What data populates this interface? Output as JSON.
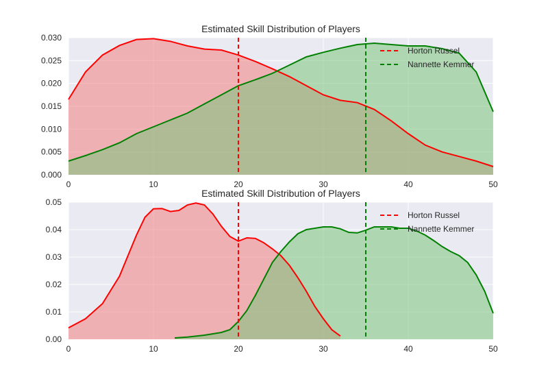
{
  "colors": {
    "background": "#eaeaf2",
    "grid": "#ffffff",
    "red": "#ff0000",
    "red_fill": "#f08080",
    "green": "#008000",
    "green_fill": "#7cc47c"
  },
  "chart_data": [
    {
      "type": "area",
      "title": "Estimated Skill Distribution of Players",
      "xlabel": "",
      "ylabel": "",
      "xlim": [
        0,
        50
      ],
      "ylim": [
        0,
        0.03
      ],
      "xticks": [
        "0",
        "10",
        "20",
        "30",
        "40",
        "50"
      ],
      "yticks": [
        "0.000",
        "0.005",
        "0.010",
        "0.015",
        "0.020",
        "0.025",
        "0.030"
      ],
      "grid": true,
      "legend": "top-right",
      "series": [
        {
          "name": "Horton Russel",
          "color": "red",
          "mean": 20,
          "points": [
            [
              0,
              0.0165
            ],
            [
              2,
              0.0225
            ],
            [
              4,
              0.0262
            ],
            [
              6,
              0.0283
            ],
            [
              8,
              0.0296
            ],
            [
              10,
              0.0298
            ],
            [
              12,
              0.0292
            ],
            [
              14,
              0.0282
            ],
            [
              16,
              0.0275
            ],
            [
              18,
              0.0273
            ],
            [
              20,
              0.0262
            ],
            [
              22,
              0.0248
            ],
            [
              24,
              0.0232
            ],
            [
              26,
              0.0215
            ],
            [
              28,
              0.0195
            ],
            [
              30,
              0.0175
            ],
            [
              32,
              0.0163
            ],
            [
              34,
              0.0158
            ],
            [
              36,
              0.0143
            ],
            [
              38,
              0.0118
            ],
            [
              40,
              0.009
            ],
            [
              42,
              0.0065
            ],
            [
              44,
              0.005
            ],
            [
              46,
              0.004
            ],
            [
              48,
              0.003
            ],
            [
              50,
              0.0018
            ]
          ]
        },
        {
          "name": "Nannette Kemmer",
          "color": "green",
          "mean": 35,
          "points": [
            [
              0,
              0.003
            ],
            [
              2,
              0.0042
            ],
            [
              4,
              0.0055
            ],
            [
              6,
              0.007
            ],
            [
              8,
              0.009
            ],
            [
              10,
              0.0105
            ],
            [
              12,
              0.012
            ],
            [
              14,
              0.0135
            ],
            [
              16,
              0.0155
            ],
            [
              18,
              0.0175
            ],
            [
              20,
              0.0195
            ],
            [
              22,
              0.0208
            ],
            [
              24,
              0.0222
            ],
            [
              26,
              0.024
            ],
            [
              28,
              0.0258
            ],
            [
              30,
              0.0268
            ],
            [
              32,
              0.0277
            ],
            [
              34,
              0.0285
            ],
            [
              36,
              0.0288
            ],
            [
              38,
              0.0285
            ],
            [
              40,
              0.0282
            ],
            [
              42,
              0.0282
            ],
            [
              44,
              0.0276
            ],
            [
              46,
              0.0266
            ],
            [
              48,
              0.0225
            ],
            [
              50,
              0.0138
            ]
          ]
        }
      ]
    },
    {
      "type": "area",
      "title": "Estimated Skill Distribution of Players",
      "xlabel": "",
      "ylabel": "",
      "xlim": [
        0,
        50
      ],
      "ylim": [
        0,
        0.05
      ],
      "xticks": [
        "0",
        "10",
        "20",
        "30",
        "40",
        "50"
      ],
      "yticks": [
        "0.00",
        "0.01",
        "0.02",
        "0.03",
        "0.04",
        "0.05"
      ],
      "grid": true,
      "legend": "top-right",
      "series": [
        {
          "name": "Horton Russel",
          "color": "red",
          "mean": 20,
          "points": [
            [
              0,
              0.0042
            ],
            [
              2,
              0.0075
            ],
            [
              4,
              0.013
            ],
            [
              6,
              0.023
            ],
            [
              8,
              0.038
            ],
            [
              9,
              0.0445
            ],
            [
              10,
              0.0476
            ],
            [
              11,
              0.0477
            ],
            [
              12,
              0.0466
            ],
            [
              13,
              0.047
            ],
            [
              14,
              0.049
            ],
            [
              15,
              0.0497
            ],
            [
              16,
              0.049
            ],
            [
              17,
              0.0457
            ],
            [
              18,
              0.0412
            ],
            [
              19,
              0.0375
            ],
            [
              20,
              0.0358
            ],
            [
              21,
              0.037
            ],
            [
              22,
              0.0368
            ],
            [
              23,
              0.0352
            ],
            [
              24,
              0.033
            ],
            [
              25,
              0.0305
            ],
            [
              26,
              0.027
            ],
            [
              27,
              0.0225
            ],
            [
              28,
              0.0175
            ],
            [
              29,
              0.012
            ],
            [
              30,
              0.0075
            ],
            [
              31,
              0.0035
            ],
            [
              32,
              0.0012
            ]
          ]
        },
        {
          "name": "Nannette Kemmer",
          "color": "green",
          "mean": 35,
          "points": [
            [
              12.5,
              0.0005
            ],
            [
              14,
              0.0008
            ],
            [
              16,
              0.0015
            ],
            [
              18,
              0.0025
            ],
            [
              19,
              0.0035
            ],
            [
              20,
              0.0065
            ],
            [
              21,
              0.0105
            ],
            [
              22,
              0.016
            ],
            [
              23,
              0.022
            ],
            [
              24,
              0.028
            ],
            [
              25,
              0.032
            ],
            [
              26,
              0.0355
            ],
            [
              27,
              0.0385
            ],
            [
              28,
              0.04
            ],
            [
              29,
              0.0405
            ],
            [
              30,
              0.041
            ],
            [
              31,
              0.041
            ],
            [
              32,
              0.0403
            ],
            [
              33,
              0.039
            ],
            [
              34,
              0.0388
            ],
            [
              35,
              0.0398
            ],
            [
              36,
              0.041
            ],
            [
              37,
              0.041
            ],
            [
              38,
              0.041
            ],
            [
              39,
              0.0405
            ],
            [
              40,
              0.0405
            ],
            [
              41,
              0.0395
            ],
            [
              42,
              0.038
            ],
            [
              43,
              0.036
            ],
            [
              44,
              0.0338
            ],
            [
              45,
              0.032
            ],
            [
              46,
              0.0305
            ],
            [
              47,
              0.028
            ],
            [
              48,
              0.0235
            ],
            [
              49,
              0.0175
            ],
            [
              50,
              0.0095
            ]
          ]
        }
      ]
    }
  ]
}
